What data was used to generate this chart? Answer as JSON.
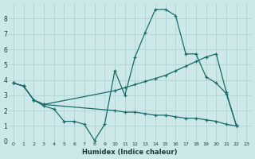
{
  "xlabel": "Humidex (Indice chaleur)",
  "xlim": [
    -0.5,
    23.5
  ],
  "ylim": [
    0,
    9
  ],
  "xticks": [
    0,
    1,
    2,
    3,
    4,
    5,
    6,
    7,
    8,
    9,
    10,
    11,
    12,
    13,
    14,
    15,
    16,
    17,
    18,
    19,
    20,
    21,
    22,
    23
  ],
  "yticks": [
    0,
    1,
    2,
    3,
    4,
    5,
    6,
    7,
    8
  ],
  "bg_color": "#cce8e8",
  "grid_color": "#aacfcf",
  "line_color": "#1a6b6b",
  "line1_x": [
    0,
    1,
    2,
    3,
    4,
    5,
    6,
    7,
    8,
    9,
    10,
    11,
    12,
    13,
    14,
    15,
    16,
    17,
    18,
    19,
    20,
    21,
    22
  ],
  "line1_y": [
    3.8,
    3.6,
    2.7,
    2.3,
    2.1,
    1.3,
    1.3,
    1.1,
    0.05,
    1.1,
    4.6,
    3.0,
    5.5,
    7.1,
    8.6,
    8.6,
    8.2,
    5.7,
    5.7,
    4.2,
    3.8,
    3.1,
    1.0
  ],
  "line2_x": [
    0,
    1,
    2,
    3,
    10,
    11,
    12,
    13,
    14,
    15,
    16,
    17,
    18,
    19,
    20,
    21,
    22
  ],
  "line2_y": [
    3.8,
    3.6,
    2.7,
    2.4,
    3.3,
    3.5,
    3.7,
    3.9,
    4.1,
    4.3,
    4.6,
    4.9,
    5.2,
    5.5,
    5.7,
    3.2,
    1.0
  ],
  "line3_x": [
    0,
    1,
    2,
    3,
    10,
    11,
    12,
    13,
    14,
    15,
    16,
    17,
    18,
    19,
    20,
    21,
    22
  ],
  "line3_y": [
    3.8,
    3.6,
    2.7,
    2.4,
    2.0,
    1.9,
    1.9,
    1.8,
    1.7,
    1.7,
    1.6,
    1.5,
    1.5,
    1.4,
    1.3,
    1.1,
    1.0
  ]
}
